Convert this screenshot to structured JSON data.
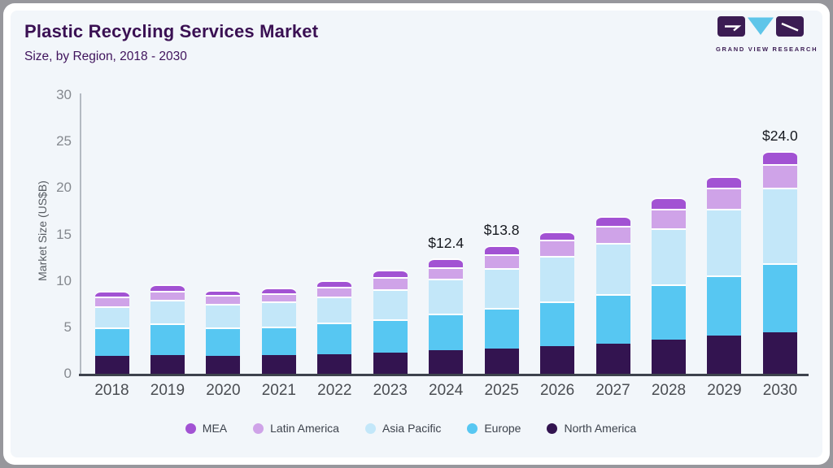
{
  "header": {
    "title": "Plastic Recycling Services Market",
    "subtitle": "Size, by Region, 2018 - 2030"
  },
  "logo": {
    "text": "GRAND VIEW RESEARCH",
    "purple": "#3b1c53",
    "blue": "#5ec5e9"
  },
  "chart_data": {
    "type": "bar",
    "stacked": true,
    "title": "Plastic Recycling Services Market Size, by Region, 2018 - 2030",
    "ylabel": "Market Size (US$B)",
    "ylim": [
      0,
      30
    ],
    "yticks": [
      0,
      5,
      10,
      15,
      20,
      25,
      30
    ],
    "grid": false,
    "legend_position": "bottom",
    "categories": [
      2018,
      2019,
      2020,
      2021,
      2022,
      2023,
      2024,
      2025,
      2026,
      2027,
      2028,
      2029,
      2030
    ],
    "series": [
      {
        "name": "North America",
        "color": "#331450",
        "values": [
          1.9,
          2.0,
          1.9,
          2.0,
          2.1,
          2.3,
          2.5,
          2.7,
          3.0,
          3.2,
          3.7,
          4.1,
          4.5
        ]
      },
      {
        "name": "Europe",
        "color": "#57c7f2",
        "values": [
          3.1,
          3.4,
          3.1,
          3.1,
          3.4,
          3.6,
          4.0,
          4.4,
          4.8,
          5.4,
          5.9,
          6.5,
          7.4
        ]
      },
      {
        "name": "Asia Pacific",
        "color": "#c3e7f9",
        "values": [
          2.3,
          2.6,
          2.5,
          2.7,
          2.8,
          3.2,
          3.7,
          4.3,
          4.9,
          5.5,
          6.1,
          7.2,
          8.1
        ]
      },
      {
        "name": "Latin America",
        "color": "#cfa3e8",
        "values": [
          1.0,
          0.9,
          1.0,
          0.9,
          1.1,
          1.3,
          1.3,
          1.5,
          1.7,
          1.8,
          2.1,
          2.2,
          2.6
        ]
      },
      {
        "name": "MEA",
        "color": "#a252d3",
        "values": [
          0.6,
          0.7,
          0.5,
          0.6,
          0.7,
          0.8,
          0.9,
          0.9,
          0.9,
          1.1,
          1.2,
          1.3,
          1.4
        ]
      }
    ],
    "totals": [
      8.9,
      9.6,
      9.0,
      9.3,
      10.1,
      11.2,
      12.4,
      13.8,
      15.3,
      17.0,
      19.0,
      21.3,
      24.0
    ],
    "annotations": [
      {
        "year": 2024,
        "label": "$12.4"
      },
      {
        "year": 2025,
        "label": "$13.8"
      },
      {
        "year": 2030,
        "label": "$24.0"
      }
    ],
    "legend": [
      "MEA",
      "Latin America",
      "Asia Pacific",
      "Europe",
      "North America"
    ]
  },
  "colors": {
    "page_bg": "#f2f6fa",
    "frame": "#ffffff",
    "outer_border": "#97979c",
    "title_text": "#3a1053",
    "x_axis_line": "#3d424d",
    "y_axis_line": "#b4bac2"
  }
}
